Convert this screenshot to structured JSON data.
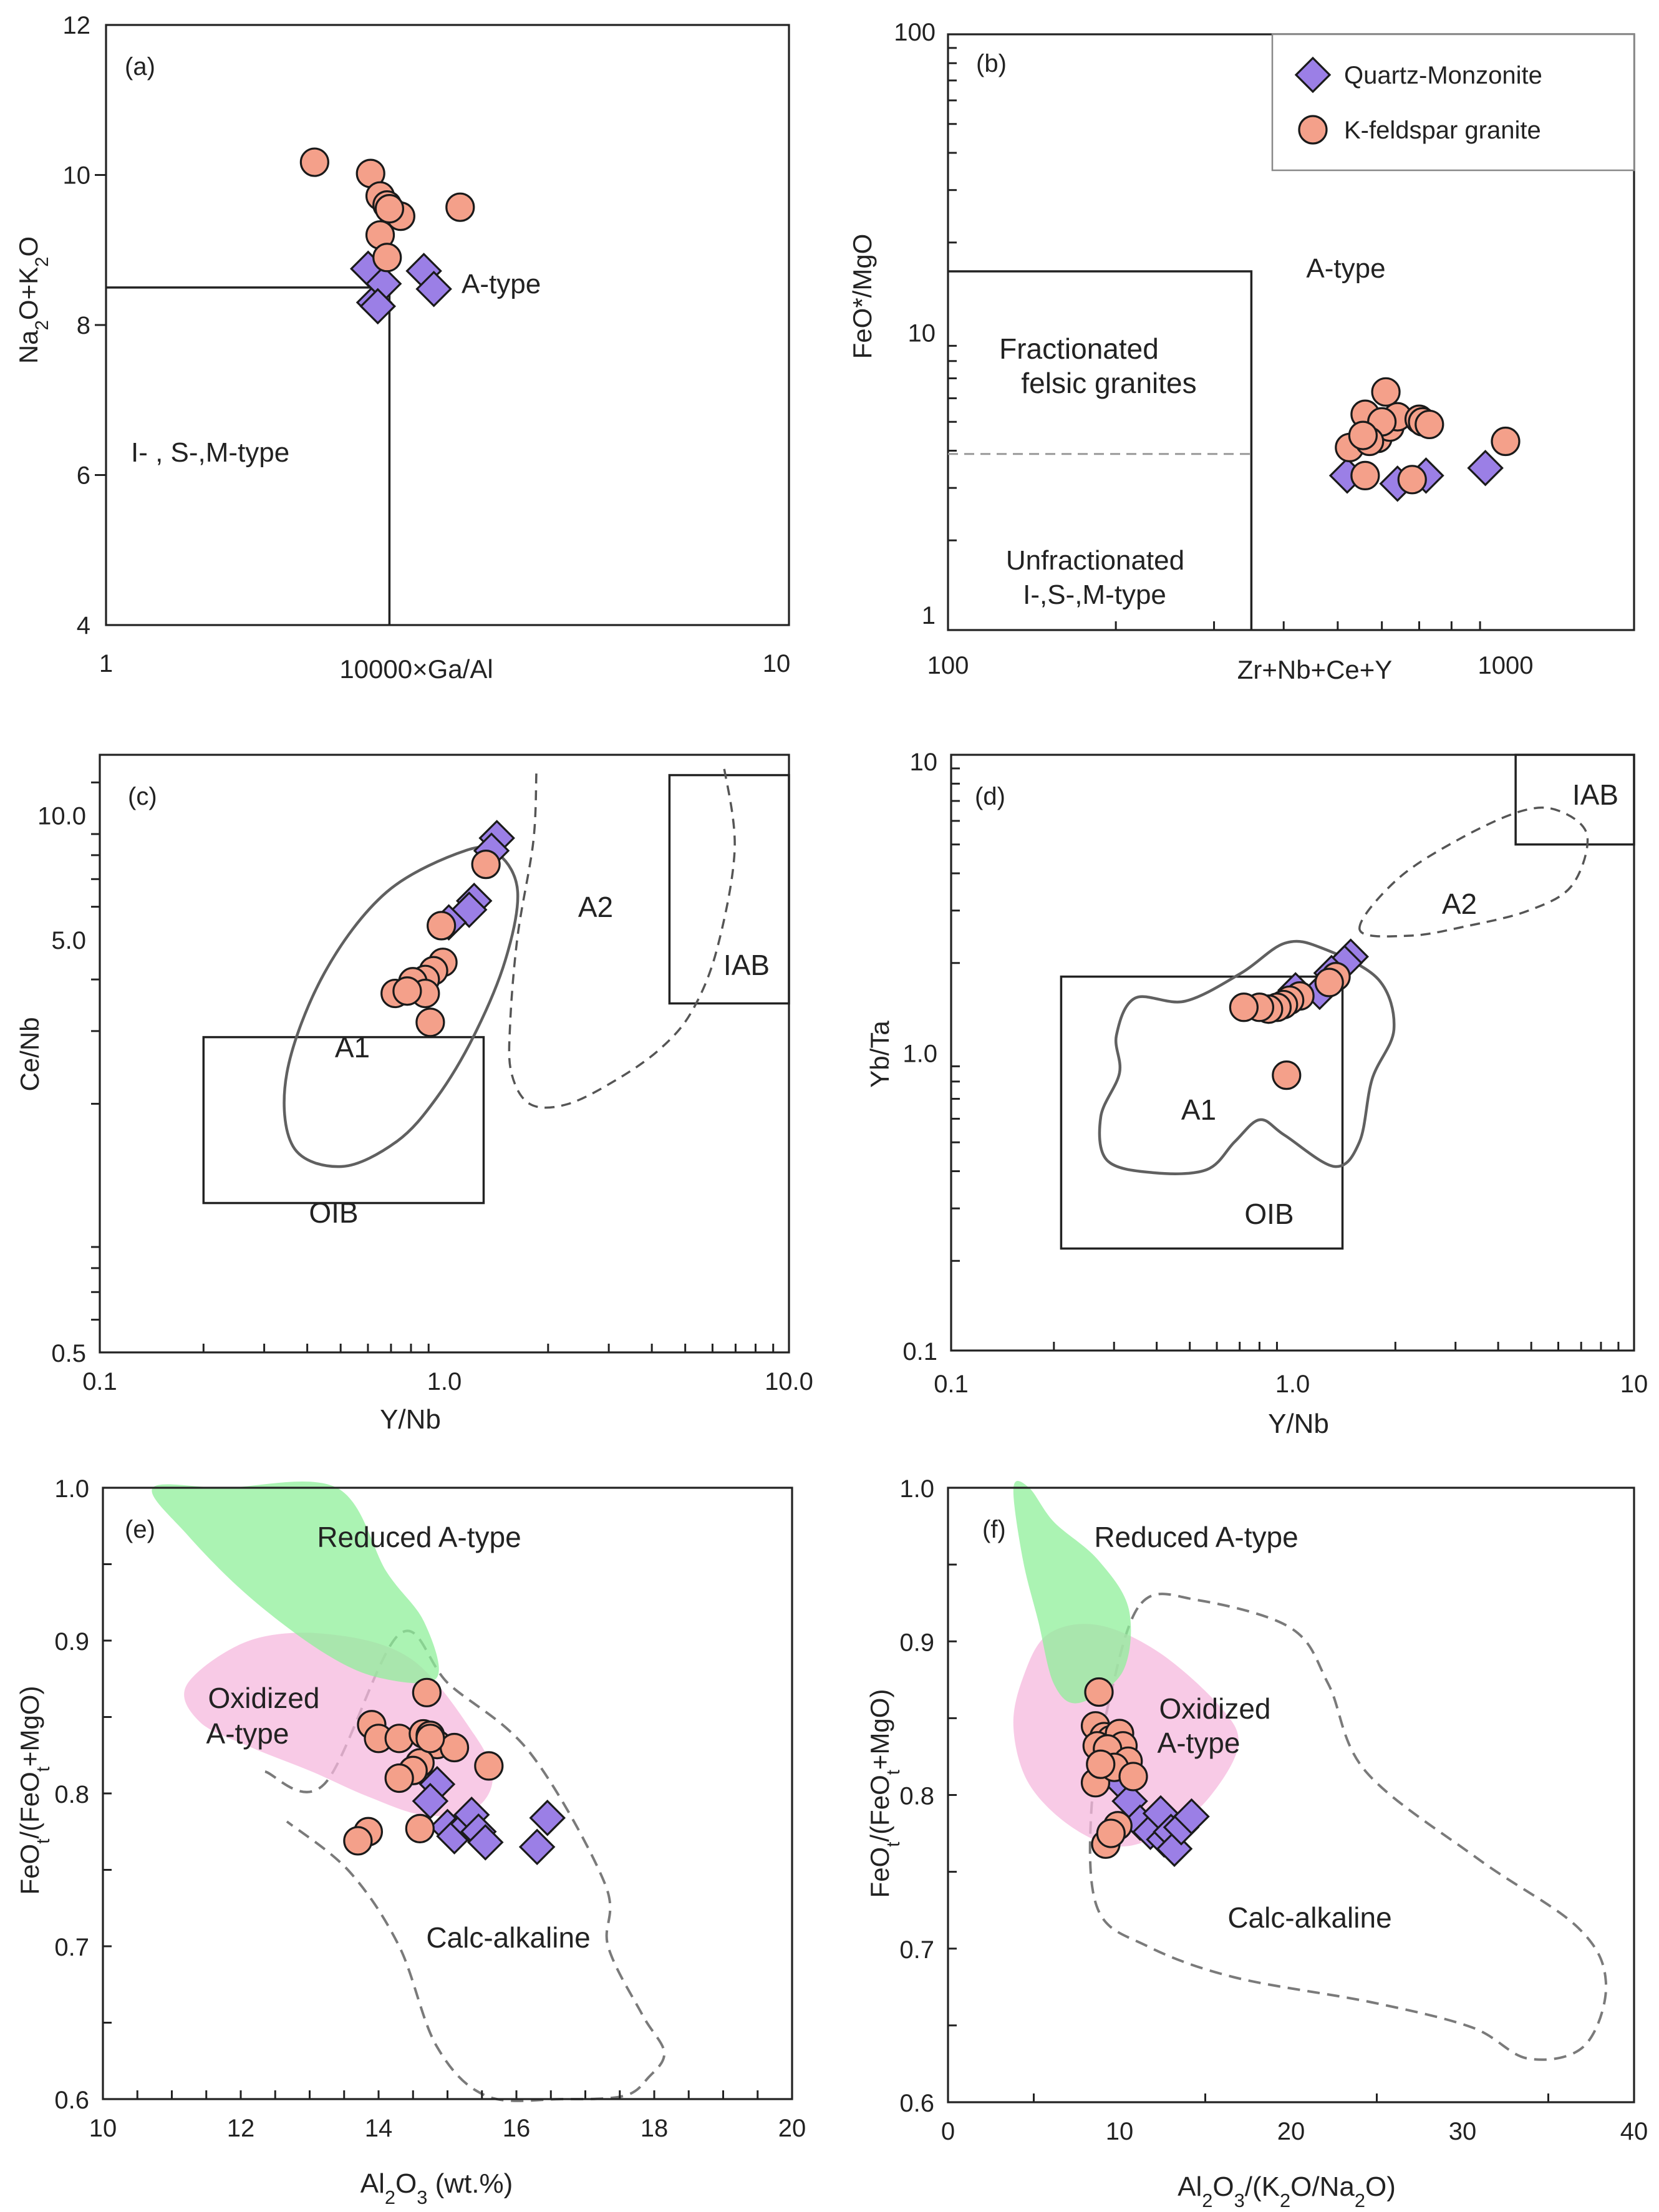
{
  "legend": {
    "quartz_monzonite": "Quartz-Monzonite",
    "kfeldspar_granite": "K-feldspar granite"
  },
  "colors": {
    "diamond_fill": "#9B7FE6",
    "circle_fill": "#F4A08A",
    "stroke": "#1a1a1a",
    "green_field": "#8FEF9A",
    "pink_field": "#F6B8DE",
    "field_solid": "#606060",
    "field_dashed": "#555555"
  },
  "chart_data": [
    {
      "panel": "a",
      "type": "scatter",
      "panel_label": "(a)",
      "xlabel": "10000×Ga/Al",
      "ylabel": "Na2O+K2O",
      "xscale": "log",
      "xlim": [
        1,
        10
      ],
      "ylim": [
        4,
        12
      ],
      "xticks": [
        1,
        10
      ],
      "yticks": [
        4,
        6,
        8,
        10,
        12
      ],
      "fields": [
        {
          "name": "I-, S-,M-type",
          "x": [
            1,
            2.6
          ],
          "y": [
            4,
            8.5
          ]
        }
      ],
      "field_labels": [
        "I- , S-,M-type",
        "A-type"
      ],
      "series": [
        {
          "name": "Quartz-Monzonite",
          "marker": "diamond",
          "x": [
            2.42,
            2.47,
            2.55,
            2.5,
            2.92,
            3.02
          ],
          "y": [
            8.75,
            8.3,
            8.55,
            8.25,
            8.72,
            8.48
          ]
        },
        {
          "name": "K-feldspar granite",
          "marker": "circle",
          "x": [
            2.02,
            2.44,
            2.52,
            2.58,
            2.63,
            2.7,
            2.52,
            2.58,
            2.6,
            3.3
          ],
          "y": [
            10.17,
            10.02,
            9.72,
            9.6,
            9.5,
            9.45,
            9.2,
            8.9,
            9.55,
            9.57
          ]
        }
      ]
    },
    {
      "panel": "b",
      "type": "scatter",
      "panel_label": "(b)",
      "xlabel": "Zr+Nb+Ce+Y",
      "ylabel": "FeO*/MgO",
      "xscale": "log",
      "yscale": "log",
      "xlim": [
        100,
        1700
      ],
      "ylim": [
        1,
        100
      ],
      "xticks": [
        100,
        1000
      ],
      "yticks": [
        1,
        10,
        100
      ],
      "fields": [
        {
          "name": "Fractionated felsic granites",
          "x": [
            100,
            350
          ],
          "y": [
            1,
            16
          ]
        }
      ],
      "dashed_boundary": {
        "x": [
          100,
          350
        ],
        "y": 3.9
      },
      "field_labels": [
        "A-type",
        "Fractionated felsic granites",
        "Unfractionated I-,S-,M-type"
      ],
      "series": [
        {
          "name": "Quartz-Monzonite",
          "marker": "diamond",
          "x": [
            520,
            640,
            720,
            920
          ],
          "y": [
            3.3,
            3.1,
            3.3,
            3.5
          ]
        },
        {
          "name": "K-feldspar granite",
          "marker": "circle",
          "x": [
            525,
            560,
            590,
            610,
            620,
            640,
            600,
            570,
            555,
            700,
            710,
            730,
            1000,
            560,
            680
          ],
          "y": [
            4.1,
            5.3,
            4.4,
            6.3,
            4.8,
            5.2,
            5.0,
            4.3,
            4.5,
            5.1,
            5.0,
            4.9,
            4.3,
            3.3,
            3.2
          ]
        }
      ]
    },
    {
      "panel": "c",
      "type": "scatter",
      "panel_label": "(c)",
      "xlabel": "Y/Nb",
      "ylabel": "Ce/Nb",
      "xscale": "log",
      "yscale": "log",
      "xlim": [
        0.1,
        10
      ],
      "ylim": [
        0.5,
        14
      ],
      "xticks": [
        0.1,
        1.0,
        10.0
      ],
      "xticklabels": [
        "0.1",
        "1.0",
        "10.0"
      ],
      "yticks": [
        0.5,
        5.0,
        10.0
      ],
      "yticklabels": [
        "0.5",
        "5.0",
        "10.0"
      ],
      "fields": [
        {
          "name": "OIB",
          "x": [
            0.2,
            1.3
          ],
          "y": [
            1.15,
            2.9
          ]
        },
        {
          "name": "IAB",
          "x": [
            4.5,
            10
          ],
          "y": [
            3.5,
            12.5
          ]
        }
      ],
      "field_labels": [
        "A1",
        "A2",
        "OIB",
        "IAB"
      ],
      "series": [
        {
          "name": "Quartz-Monzonite",
          "marker": "diamond",
          "x": [
            1.42,
            1.37,
            1.22,
            1.18,
            1.03
          ],
          "y": [
            8.8,
            8.2,
            6.2,
            5.9,
            5.5
          ]
        },
        {
          "name": "K-feldspar granite",
          "marker": "circle",
          "x": [
            1.32,
            0.98,
            0.99,
            0.93,
            0.88,
            0.81,
            0.88,
            0.72,
            0.78,
            0.91
          ],
          "y": [
            7.6,
            5.4,
            4.4,
            4.2,
            4.0,
            3.95,
            3.7,
            3.7,
            3.75,
            3.15
          ]
        }
      ]
    },
    {
      "panel": "d",
      "type": "scatter",
      "panel_label": "(d)",
      "xlabel": "Y/Nb",
      "ylabel": "Yb/Ta",
      "xscale": "log",
      "yscale": "log",
      "xlim": [
        0.1,
        10
      ],
      "ylim": [
        0.1,
        10
      ],
      "xticks": [
        0.1,
        1.0,
        10
      ],
      "xticklabels": [
        "0.1",
        "1.0",
        "10"
      ],
      "yticks": [
        0.1,
        1.0,
        10
      ],
      "yticklabels": [
        "0.1",
        "1.0",
        "10"
      ],
      "fields": [
        {
          "name": "OIB",
          "x": [
            0.21,
            1.4
          ],
          "y": [
            0.22,
            1.8
          ]
        },
        {
          "name": "IAB",
          "x": [
            4.5,
            10
          ],
          "y": [
            5,
            10
          ]
        }
      ],
      "field_labels": [
        "A1",
        "A2",
        "OIB",
        "IAB"
      ],
      "series": [
        {
          "name": "Quartz-Monzonite",
          "marker": "diamond",
          "x": [
            1.48,
            1.42,
            1.3,
            1.2,
            1.02
          ],
          "y": [
            2.1,
            2.0,
            1.85,
            1.6,
            1.62
          ]
        },
        {
          "name": "K-feldspar granite",
          "marker": "circle",
          "x": [
            1.34,
            1.28,
            1.05,
            0.98,
            0.94,
            0.9,
            0.85,
            0.8,
            0.72,
            0.96
          ],
          "y": [
            1.8,
            1.72,
            1.55,
            1.5,
            1.45,
            1.42,
            1.4,
            1.42,
            1.42,
            0.84
          ]
        }
      ]
    },
    {
      "panel": "e",
      "type": "scatter",
      "panel_label": "(e)",
      "xlabel": "Al2O3 (wt.%)",
      "ylabel": "FeOt/(FeOt+MgO)",
      "xlim": [
        10,
        20
      ],
      "ylim": [
        0.6,
        1.0
      ],
      "xticks": [
        10,
        12,
        14,
        16,
        18,
        20
      ],
      "yticks": [
        0.6,
        0.7,
        0.8,
        0.9,
        1.0
      ],
      "yticklabels": [
        "0.6",
        "0.7",
        "0.8",
        "0.9",
        "1.0"
      ],
      "field_labels": [
        "Reduced A-type",
        "Oxidized A-type",
        "Calc-alkaline"
      ],
      "series": [
        {
          "name": "Quartz-Monzonite",
          "marker": "diamond",
          "x": [
            14.85,
            14.75,
            15.0,
            15.1,
            15.3,
            15.35,
            15.45,
            15.55,
            16.3,
            16.45
          ],
          "y": [
            0.806,
            0.795,
            0.778,
            0.772,
            0.78,
            0.786,
            0.775,
            0.768,
            0.765,
            0.784
          ]
        },
        {
          "name": "K-feldspar granite",
          "marker": "circle",
          "x": [
            14.7,
            13.9,
            14.0,
            14.3,
            14.65,
            14.75,
            14.85,
            14.6,
            14.5,
            14.3,
            15.1,
            15.6,
            14.75,
            13.85,
            13.7,
            14.6
          ],
          "y": [
            0.866,
            0.845,
            0.836,
            0.836,
            0.839,
            0.838,
            0.832,
            0.82,
            0.815,
            0.81,
            0.83,
            0.818,
            0.836,
            0.775,
            0.769,
            0.777
          ]
        }
      ]
    },
    {
      "panel": "f",
      "type": "scatter",
      "panel_label": "(f)",
      "xlabel": "Al2O3/(K2O/Na2O)",
      "ylabel": "FeOt/(FeOt+MgO)",
      "xlim": [
        0,
        40
      ],
      "ylim": [
        0.6,
        1.0
      ],
      "xticks": [
        0,
        10,
        20,
        30,
        40
      ],
      "yticks": [
        0.6,
        0.7,
        0.8,
        0.9,
        1.0
      ],
      "yticklabels": [
        "0.6",
        "0.7",
        "0.8",
        "0.9",
        "1.0"
      ],
      "field_labels": [
        "Reduced A-type",
        "Oxidized A-type",
        "Calc-alkaline"
      ],
      "series": [
        {
          "name": "Quartz-Monzonite",
          "marker": "diamond",
          "x": [
            10.1,
            10.6,
            11.2,
            11.8,
            12.4,
            12.6,
            13.0,
            13.2,
            13.6,
            14.2
          ],
          "y": [
            0.808,
            0.796,
            0.782,
            0.776,
            0.788,
            0.771,
            0.776,
            0.765,
            0.779,
            0.786
          ]
        },
        {
          "name": "K-feldspar granite",
          "marker": "circle",
          "x": [
            8.8,
            8.6,
            9.1,
            9.5,
            10.0,
            10.2,
            8.7,
            9.3,
            10.5,
            8.6,
            9.7,
            10.8,
            8.9,
            9.9,
            9.2,
            9.5
          ],
          "y": [
            0.867,
            0.845,
            0.838,
            0.836,
            0.84,
            0.832,
            0.832,
            0.83,
            0.822,
            0.808,
            0.818,
            0.812,
            0.82,
            0.78,
            0.768,
            0.775
          ]
        }
      ]
    }
  ]
}
